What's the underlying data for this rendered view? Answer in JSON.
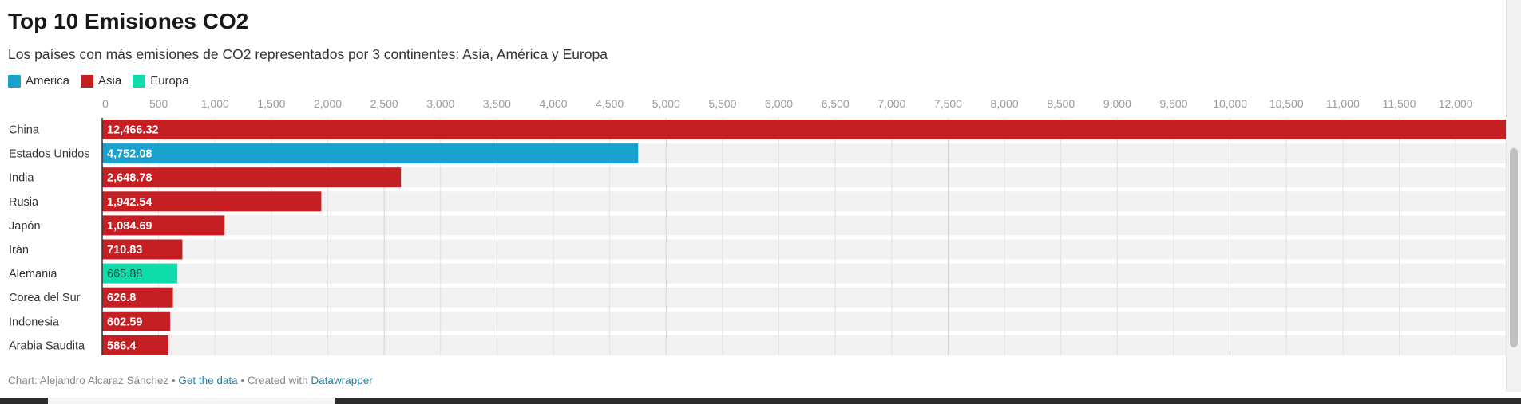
{
  "title": "Top 10 Emisiones CO2",
  "subtitle": "Los países con más emisiones de CO2 representados por 3 continentes: Asia, América y Europa",
  "legend": [
    {
      "label": "America",
      "color": "#1ba1cd"
    },
    {
      "label": "Asia",
      "color": "#c61f23"
    },
    {
      "label": "Europa",
      "color": "#0fdcab"
    }
  ],
  "chart_data": {
    "type": "bar",
    "orientation": "horizontal",
    "categories": [
      "China",
      "Estados Unidos",
      "India",
      "Rusia",
      "Japón",
      "Irán",
      "Alemania",
      "Corea del Sur",
      "Indonesia",
      "Arabia Saudita"
    ],
    "values": [
      12466.32,
      4752.08,
      2648.78,
      1942.54,
      1084.69,
      710.83,
      665.88,
      626.8,
      602.59,
      586.4
    ],
    "value_labels": [
      "12,466.32",
      "4,752.08",
      "2,648.78",
      "1,942.54",
      "1,084.69",
      "710.83",
      "665.88",
      "626.8",
      "602.59",
      "586.4"
    ],
    "groups": [
      "Asia",
      "America",
      "Asia",
      "Asia",
      "Asia",
      "Asia",
      "Europa",
      "Asia",
      "Asia",
      "Asia"
    ],
    "xlim": [
      0,
      12466.32
    ],
    "x_ticks": [
      0,
      500,
      1000,
      1500,
      2000,
      2500,
      3000,
      3500,
      4000,
      4500,
      5000,
      5500,
      6000,
      6500,
      7000,
      7500,
      8000,
      8500,
      9000,
      9500,
      10000,
      10500,
      11000,
      11500,
      12000
    ],
    "x_tick_labels": [
      "0",
      "500",
      "1,000",
      "1,500",
      "2,000",
      "2,500",
      "3,000",
      "3,500",
      "4,000",
      "4,500",
      "5,000",
      "5,500",
      "6,000",
      "6,500",
      "7,000",
      "7,500",
      "8,000",
      "8,500",
      "9,000",
      "9,500",
      "10,000",
      "10,500",
      "11,000",
      "11,500",
      "12,000"
    ],
    "axis_position": "top",
    "grid": true,
    "legend_position": "top-left"
  },
  "footer": {
    "prefix": "Chart: Alejandro Alcaraz Sánchez • ",
    "get_data": "Get the data",
    "middle": " • Created with ",
    "tool": "Datawrapper"
  }
}
